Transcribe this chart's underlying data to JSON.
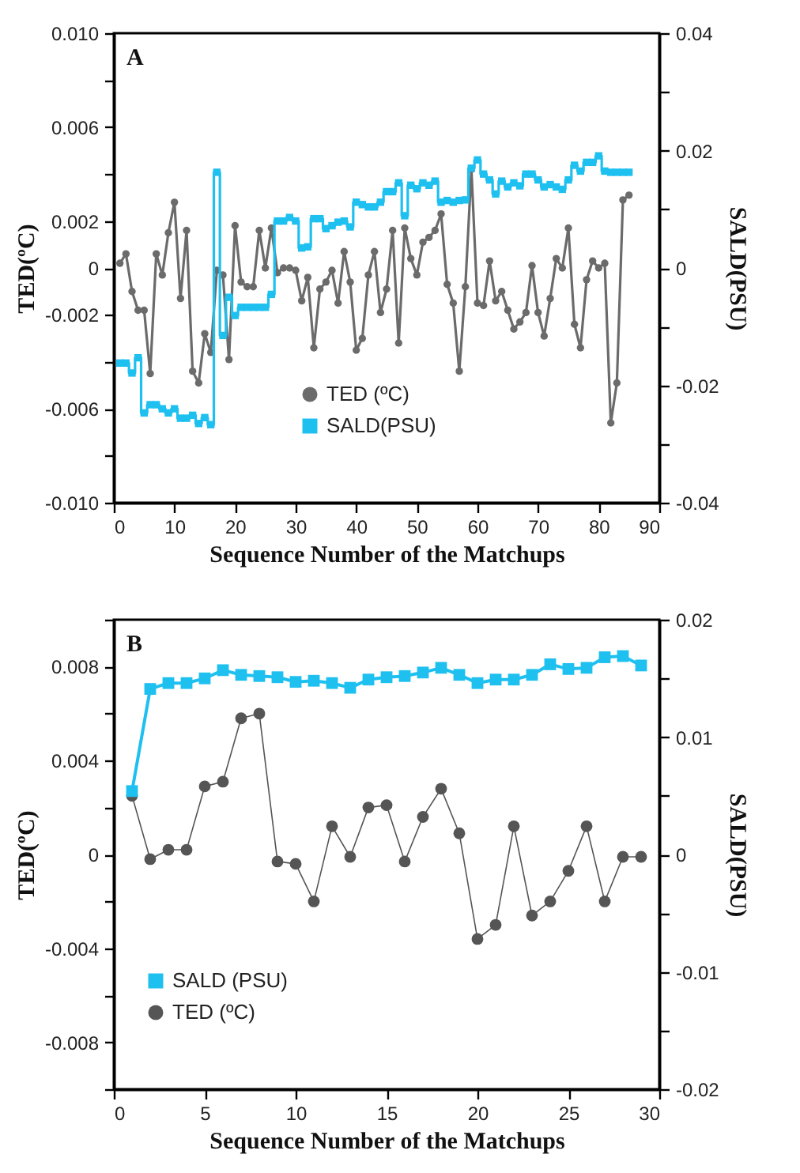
{
  "chart_data": [
    {
      "type": "line",
      "annotations": [
        "A"
      ],
      "xlabel": "Sequence Number of the Matchups",
      "ylabel": "TED(ºC)",
      "y2label": "SALD(PSU)",
      "x": [
        1,
        2,
        3,
        4,
        5,
        6,
        7,
        8,
        9,
        10,
        11,
        12,
        13,
        14,
        15,
        16,
        17,
        18,
        19,
        20,
        21,
        22,
        23,
        24,
        25,
        26,
        27,
        28,
        29,
        30,
        31,
        32,
        33,
        34,
        35,
        36,
        37,
        38,
        39,
        40,
        41,
        42,
        43,
        44,
        45,
        46,
        47,
        48,
        49,
        50,
        51,
        52,
        53,
        54,
        55,
        56,
        57,
        58,
        59,
        60,
        61,
        62,
        63,
        64,
        65,
        66,
        67,
        68,
        69,
        70,
        71,
        72,
        73,
        74,
        75,
        76,
        77,
        78,
        79,
        80,
        81,
        82,
        83,
        84,
        85
      ],
      "xlim": [
        0,
        90
      ],
      "xticks": [
        0,
        10,
        20,
        30,
        40,
        50,
        60,
        70,
        80,
        90
      ],
      "ylim": [
        -0.01,
        0.01
      ],
      "yticks": [
        {
          "value": -0.01,
          "label": "-0.010"
        },
        {
          "value": -0.008,
          "label": null
        },
        {
          "value": -0.006,
          "label": "-0.006"
        },
        {
          "value": -0.004,
          "label": null
        },
        {
          "value": -0.002,
          "label": "-0.002"
        },
        0,
        {
          "value": 0.002,
          "label": "0.002"
        },
        {
          "value": 0.004,
          "label": null
        },
        {
          "value": 0.006,
          "label": "0.006"
        },
        {
          "value": 0.008,
          "label": null
        },
        {
          "value": 0.01,
          "label": "0.010"
        }
      ],
      "y2lim": [
        -0.04,
        0.04
      ],
      "y2ticks": [
        -0.04,
        {
          "value": -0.03,
          "label": null
        },
        -0.02,
        {
          "value": -0.01,
          "label": null
        },
        0,
        {
          "value": 0.01,
          "label": null
        },
        0.02,
        {
          "value": 0.03,
          "label": null
        },
        0.04
      ],
      "legend": "bottom",
      "grid": false,
      "series": [
        {
          "name": "TED (ºC)",
          "color": "#6b6b6b",
          "marker": "circle",
          "values": [
            0.0002,
            0.0006,
            -0.001,
            -0.0018,
            -0.0018,
            -0.0045,
            0.0006,
            -0.0003,
            0.0015,
            0.0028,
            -0.0013,
            0.0016,
            -0.0044,
            -0.0049,
            -0.0028,
            -0.0036,
            -0.0001,
            -0.0003,
            -0.0039,
            0.0018,
            -0.0006,
            -0.0008,
            -0.0008,
            0.0016,
            0,
            0.0017,
            -0.0002,
            0,
            0,
            -0.0001,
            -0.0014,
            -0.0004,
            -0.0034,
            -0.0009,
            -0.0006,
            -0.0001,
            -0.0015,
            0.0007,
            -0.0006,
            -0.0035,
            -0.003,
            -0.0003,
            0.0007,
            -0.0019,
            -0.0009,
            0.0016,
            -0.0032,
            0.0017,
            0.0004,
            -0.0003,
            0.0011,
            0.0013,
            0.0016,
            0.0023,
            -0.0007,
            -0.0015,
            -0.0044,
            -0.0008,
            0.0042,
            -0.0015,
            -0.0016,
            0.0003,
            -0.0014,
            -0.001,
            -0.0018,
            -0.0026,
            -0.0023,
            -0.0019,
            0.0001,
            -0.0019,
            -0.0029,
            -0.0013,
            0.0004,
            0,
            0.0017,
            -0.0024,
            -0.0034,
            -0.0005,
            0.0003,
            0,
            0.0002,
            -0.0066,
            -0.0049,
            0.0029,
            0.0031
          ]
        },
        {
          "name": "SALD(PSU)",
          "color": "#1ec0f0",
          "type": "step",
          "marker": "square",
          "axis": "y2",
          "values": [
            -0.0162,
            -0.0162,
            -0.0179,
            -0.0153,
            -0.0247,
            -0.0233,
            -0.0233,
            -0.024,
            -0.0247,
            -0.024,
            -0.0256,
            -0.0256,
            -0.0251,
            -0.0265,
            -0.0255,
            -0.0267,
            0.0163,
            -0.0115,
            -0.005,
            -0.0081,
            -0.0067,
            -0.0067,
            -0.0067,
            -0.0067,
            -0.0067,
            -0.0045,
            0.008,
            0.008,
            0.0086,
            0.008,
            0.0034,
            0.0036,
            0.0084,
            0.0084,
            0.0067,
            0.0072,
            0.0078,
            0.008,
            0.007,
            0.0112,
            0.0108,
            0.0104,
            0.0104,
            0.0112,
            0.013,
            0.013,
            0.0145,
            0.0089,
            0.0141,
            0.0135,
            0.0145,
            0.0141,
            0.0148,
            0.0112,
            0.0115,
            0.0112,
            0.0115,
            0.0116,
            0.017,
            0.0184,
            0.016,
            0.015,
            0.0126,
            0.0148,
            0.0138,
            0.0145,
            0.014,
            0.016,
            0.016,
            0.015,
            0.0138,
            0.0142,
            0.0138,
            0.0134,
            0.015,
            0.0175,
            0.0165,
            0.018,
            0.018,
            0.0191,
            0.0165,
            0.0163,
            0.0163,
            0.0163,
            0.0163
          ]
        }
      ]
    },
    {
      "type": "line",
      "annotations": [
        "B"
      ],
      "xlabel": "Sequence Number of the Matchups",
      "ylabel": "TED(ºC)",
      "y2label": "SALD(PSU)",
      "x": [
        1,
        2,
        3,
        4,
        5,
        6,
        7,
        8,
        9,
        10,
        11,
        12,
        13,
        14,
        15,
        16,
        17,
        18,
        19,
        20,
        21,
        22,
        23,
        24,
        25,
        26,
        27,
        28,
        29
      ],
      "xlim": [
        0,
        30
      ],
      "xticks": [
        0,
        5,
        10,
        15,
        20,
        25,
        30
      ],
      "ylim": [
        -0.01,
        0.01
      ],
      "yticks": [
        {
          "value": -0.01,
          "label": null
        },
        -0.008,
        {
          "value": -0.006,
          "label": null
        },
        -0.004,
        {
          "value": -0.002,
          "label": null
        },
        0,
        {
          "value": 0.002,
          "label": null
        },
        0.004,
        {
          "value": 0.006,
          "label": null
        },
        0.008,
        {
          "value": 0.01,
          "label": null
        }
      ],
      "y2lim": [
        -0.02,
        0.02
      ],
      "y2ticks": [
        -0.02,
        {
          "value": -0.015,
          "label": null
        },
        -0.01,
        {
          "value": -0.005,
          "label": null
        },
        0,
        {
          "value": 0.005,
          "label": null
        },
        0.01,
        {
          "value": 0.015,
          "label": null
        },
        0.02
      ],
      "legend": "bottom left",
      "grid": false,
      "series": [
        {
          "name": "SALD (PSU)",
          "color": "#1ec0f0",
          "marker": "square",
          "axis": "y2",
          "values": [
            0.0054,
            0.0141,
            0.0146,
            0.0146,
            0.015,
            0.0157,
            0.0153,
            0.0152,
            0.0151,
            0.0147,
            0.0148,
            0.0146,
            0.0142,
            0.0149,
            0.0151,
            0.0152,
            0.0155,
            0.0159,
            0.0153,
            0.0146,
            0.0149,
            0.0149,
            0.0153,
            0.0162,
            0.0158,
            0.0159,
            0.0168,
            0.0169,
            0.0161
          ]
        },
        {
          "name": "TED (ºC)",
          "color": "#555555",
          "marker": "circle",
          "values": [
            0.0025,
            -0.0002,
            0.0002,
            0.0002,
            0.0029,
            0.0031,
            0.0058,
            0.006,
            -0.0003,
            -0.0004,
            -0.002,
            0.0012,
            -0.0001,
            0.002,
            0.0021,
            -0.0003,
            0.0016,
            0.0028,
            0.0009,
            -0.0036,
            -0.003,
            0.0012,
            -0.0026,
            -0.002,
            -0.0007,
            0.0012,
            -0.002,
            -0.0001,
            -0.0001
          ]
        }
      ]
    }
  ]
}
